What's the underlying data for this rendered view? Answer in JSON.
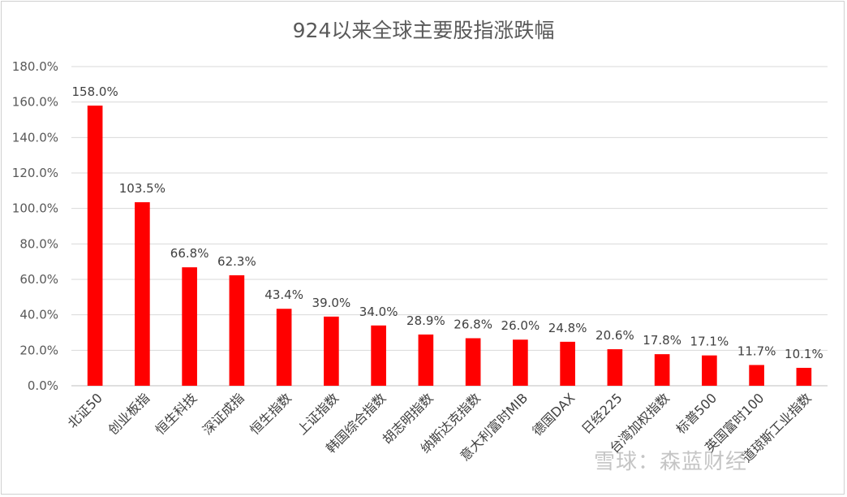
{
  "chart_data": {
    "type": "bar",
    "title": "924以来全球主要股指涨跌幅",
    "xlabel": "",
    "ylabel": "",
    "ylim": [
      0,
      180
    ],
    "yticks": [
      "0.0%",
      "20.0%",
      "40.0%",
      "60.0%",
      "80.0%",
      "100.0%",
      "120.0%",
      "140.0%",
      "160.0%",
      "180.0%"
    ],
    "grid": true,
    "legend": "none",
    "bar_color": "#ff0000",
    "categories": [
      "北证50",
      "创业板指",
      "恒生科技",
      "深证成指",
      "恒生指数",
      "上证指数",
      "韩国综合指数",
      "胡志明指数",
      "纳斯达克指数",
      "意大利富时MIB",
      "德国DAX",
      "日经225",
      "台湾加权指数",
      "标普500",
      "英国富时100",
      "道琼斯工业指数"
    ],
    "values": [
      158.0,
      103.5,
      66.8,
      62.3,
      43.4,
      39.0,
      34.0,
      28.9,
      26.8,
      26.0,
      24.8,
      20.6,
      17.8,
      17.1,
      11.7,
      10.1
    ],
    "data_labels": [
      "158.0%",
      "103.5%",
      "66.8%",
      "62.3%",
      "43.4%",
      "39.0%",
      "34.0%",
      "28.9%",
      "26.8%",
      "26.0%",
      "24.8%",
      "20.6%",
      "17.8%",
      "17.1%",
      "11.7%",
      "10.1%"
    ]
  },
  "watermark": "雪球：森蓝财经"
}
